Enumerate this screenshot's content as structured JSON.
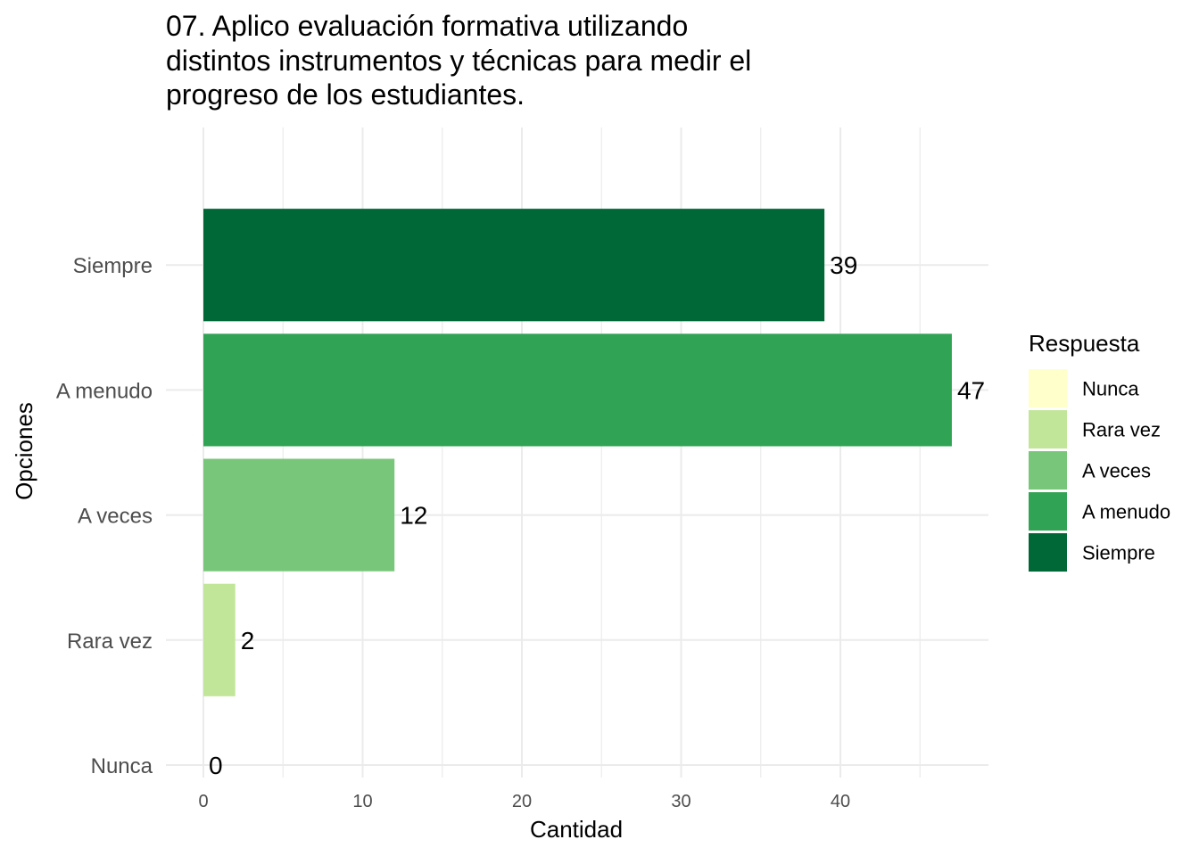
{
  "chart_data": {
    "type": "bar",
    "orientation": "horizontal",
    "title_lines": [
      "07. Aplico evaluación formativa utilizando",
      "distintos instrumentos y técnicas para medir el",
      "progreso de los estudiantes."
    ],
    "xlabel": "Cantidad",
    "ylabel": "Opciones",
    "categories": [
      "Nunca",
      "Rara vez",
      "A veces",
      "A menudo",
      "Siempre"
    ],
    "values": [
      0,
      2,
      12,
      47,
      39
    ],
    "colors": [
      "#ffffcc",
      "#c2e699",
      "#78c679",
      "#31a354",
      "#006837"
    ],
    "x_ticks": [
      0,
      10,
      20,
      30,
      40
    ],
    "x_range": [
      0,
      49.35
    ],
    "grid": true,
    "legend": {
      "title": "Respuesta",
      "placement": "right",
      "entries": [
        "Nunca",
        "Rara vez",
        "A veces",
        "A menudo",
        "Siempre"
      ]
    }
  }
}
